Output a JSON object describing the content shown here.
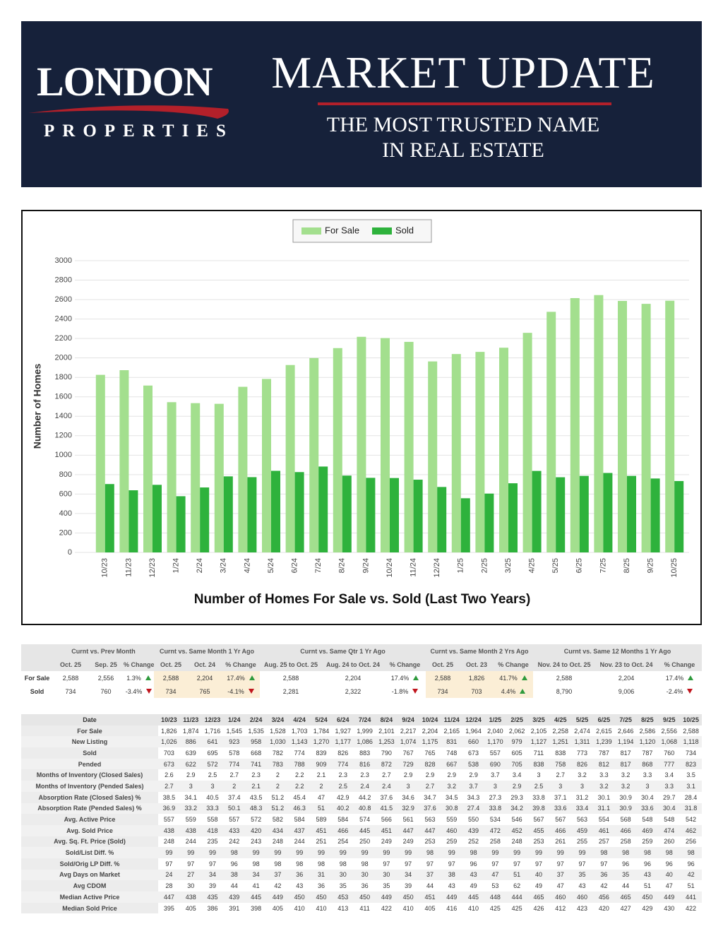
{
  "header": {
    "logo_title": "LONDON",
    "logo_subtitle": "PROPERTIES",
    "title": "MARKET UPDATE",
    "tagline": [
      "THE MOST TRUSTED NAME",
      "IN REAL ESTATE"
    ]
  },
  "chart_data": {
    "type": "bar",
    "title": "Number of Homes For Sale vs. Sold (Last Two Years)",
    "y_label": "Number of Homes",
    "categories": [
      "10/23",
      "11/23",
      "12/23",
      "1/24",
      "2/24",
      "3/24",
      "4/24",
      "5/24",
      "6/24",
      "7/24",
      "8/24",
      "9/24",
      "10/24",
      "11/24",
      "12/24",
      "1/25",
      "2/25",
      "3/25",
      "4/25",
      "5/25",
      "6/25",
      "7/25",
      "8/25",
      "9/25",
      "10/25"
    ],
    "series": [
      {
        "name": "For Sale",
        "color": "#a3df8e",
        "values": [
          1826,
          1874,
          1716,
          1545,
          1535,
          1528,
          1703,
          1784,
          1927,
          1999,
          2101,
          2217,
          2204,
          2165,
          1964,
          2040,
          2062,
          2105,
          2258,
          2474,
          2615,
          2646,
          2586,
          2556,
          2588
        ]
      },
      {
        "name": "Sold",
        "color": "#2eb23c",
        "values": [
          703,
          639,
          695,
          578,
          668,
          782,
          774,
          839,
          826,
          883,
          790,
          767,
          765,
          748,
          673,
          557,
          605,
          711,
          838,
          773,
          787,
          817,
          787,
          760,
          734
        ]
      }
    ],
    "ylim": [
      0,
      3000
    ],
    "yticks": [
      0,
      200,
      400,
      600,
      800,
      1000,
      1200,
      1400,
      1600,
      1800,
      2000,
      2200,
      2400,
      2600,
      2800,
      3000
    ],
    "grid": true,
    "legend": "top"
  },
  "summary": {
    "row_labels": [
      "For Sale",
      "Sold"
    ],
    "groups": [
      {
        "title": "Curnt vs. Prev Month",
        "columns": [
          "Oct. 25",
          "Sep. 25",
          "% Change"
        ],
        "rows": [
          [
            "2,588",
            "2,556",
            "1.3%"
          ],
          [
            "734",
            "760",
            "-3.4%"
          ]
        ]
      },
      {
        "title": "Curnt vs. Same Month 1 Yr Ago",
        "columns": [
          "Oct. 25",
          "Oct. 24",
          "% Change"
        ],
        "rows": [
          [
            "2,588",
            "2,204",
            "17.4%"
          ],
          [
            "734",
            "765",
            "-4.1%"
          ]
        ]
      },
      {
        "title": "Curnt vs. Same Qtr 1 Yr Ago",
        "columns": [
          "Aug. 25 to Oct. 25",
          "Aug. 24 to Oct. 24",
          "% Change"
        ],
        "rows": [
          [
            "2,588",
            "2,204",
            "17.4%"
          ],
          [
            "2,281",
            "2,322",
            "-1.8%"
          ]
        ]
      },
      {
        "title": "Curnt vs. Same Month 2 Yrs Ago",
        "columns": [
          "Oct. 25",
          "Oct. 23",
          "% Change"
        ],
        "rows": [
          [
            "2,588",
            "1,826",
            "41.7%"
          ],
          [
            "734",
            "703",
            "4.4%"
          ]
        ]
      },
      {
        "title": "Curnt vs. Same 12 Months 1 Yr Ago",
        "columns": [
          "Nov. 24 to Oct. 25",
          "Nov. 23 to Oct. 24",
          "% Change"
        ],
        "rows": [
          [
            "2,588",
            "2,204",
            "17.4%"
          ],
          [
            "8,790",
            "9,006",
            "-2.4%"
          ]
        ]
      }
    ]
  },
  "table": {
    "header": [
      "Date",
      "10/23",
      "11/23",
      "12/23",
      "1/24",
      "2/24",
      "3/24",
      "4/24",
      "5/24",
      "6/24",
      "7/24",
      "8/24",
      "9/24",
      "10/24",
      "11/24",
      "12/24",
      "1/25",
      "2/25",
      "3/25",
      "4/25",
      "5/25",
      "6/25",
      "7/25",
      "8/25",
      "9/25",
      "10/25"
    ],
    "rows": [
      [
        "For Sale",
        "1,826",
        "1,874",
        "1,716",
        "1,545",
        "1,535",
        "1,528",
        "1,703",
        "1,784",
        "1,927",
        "1,999",
        "2,101",
        "2,217",
        "2,204",
        "2,165",
        "1,964",
        "2,040",
        "2,062",
        "2,105",
        "2,258",
        "2,474",
        "2,615",
        "2,646",
        "2,586",
        "2,556",
        "2,588"
      ],
      [
        "New Listing",
        "1,026",
        "886",
        "641",
        "923",
        "958",
        "1,030",
        "1,143",
        "1,270",
        "1,177",
        "1,086",
        "1,253",
        "1,074",
        "1,175",
        "831",
        "660",
        "1,170",
        "979",
        "1,127",
        "1,251",
        "1,311",
        "1,239",
        "1,194",
        "1,120",
        "1,068",
        "1,118"
      ],
      [
        "Sold",
        "703",
        "639",
        "695",
        "578",
        "668",
        "782",
        "774",
        "839",
        "826",
        "883",
        "790",
        "767",
        "765",
        "748",
        "673",
        "557",
        "605",
        "711",
        "838",
        "773",
        "787",
        "817",
        "787",
        "760",
        "734"
      ],
      [
        "Pended",
        "673",
        "622",
        "572",
        "774",
        "741",
        "783",
        "788",
        "909",
        "774",
        "816",
        "872",
        "729",
        "828",
        "667",
        "538",
        "690",
        "705",
        "838",
        "758",
        "826",
        "812",
        "817",
        "868",
        "777",
        "823"
      ],
      [
        "Months of Inventory (Closed Sales)",
        "2.6",
        "2.9",
        "2.5",
        "2.7",
        "2.3",
        "2",
        "2.2",
        "2.1",
        "2.3",
        "2.3",
        "2.7",
        "2.9",
        "2.9",
        "2.9",
        "2.9",
        "3.7",
        "3.4",
        "3",
        "2.7",
        "3.2",
        "3.3",
        "3.2",
        "3.3",
        "3.4",
        "3.5"
      ],
      [
        "Months of Inventory (Pended Sales)",
        "2.7",
        "3",
        "3",
        "2",
        "2.1",
        "2",
        "2.2",
        "2",
        "2.5",
        "2.4",
        "2.4",
        "3",
        "2.7",
        "3.2",
        "3.7",
        "3",
        "2.9",
        "2.5",
        "3",
        "3",
        "3.2",
        "3.2",
        "3",
        "3.3",
        "3.1"
      ],
      [
        "Absorption Rate (Closed Sales) %",
        "38.5",
        "34.1",
        "40.5",
        "37.4",
        "43.5",
        "51.2",
        "45.4",
        "47",
        "42.9",
        "44.2",
        "37.6",
        "34.6",
        "34.7",
        "34.5",
        "34.3",
        "27.3",
        "29.3",
        "33.8",
        "37.1",
        "31.2",
        "30.1",
        "30.9",
        "30.4",
        "29.7",
        "28.4"
      ],
      [
        "Absorption Rate (Pended Sales) %",
        "36.9",
        "33.2",
        "33.3",
        "50.1",
        "48.3",
        "51.2",
        "46.3",
        "51",
        "40.2",
        "40.8",
        "41.5",
        "32.9",
        "37.6",
        "30.8",
        "27.4",
        "33.8",
        "34.2",
        "39.8",
        "33.6",
        "33.4",
        "31.1",
        "30.9",
        "33.6",
        "30.4",
        "31.8"
      ],
      [
        "Avg. Active Price",
        "557",
        "559",
        "558",
        "557",
        "572",
        "582",
        "584",
        "589",
        "584",
        "574",
        "566",
        "561",
        "563",
        "559",
        "550",
        "534",
        "546",
        "567",
        "567",
        "563",
        "554",
        "568",
        "548",
        "548",
        "542"
      ],
      [
        "Avg. Sold Price",
        "438",
        "438",
        "418",
        "433",
        "420",
        "434",
        "437",
        "451",
        "466",
        "445",
        "451",
        "447",
        "447",
        "460",
        "439",
        "472",
        "452",
        "455",
        "466",
        "459",
        "461",
        "466",
        "469",
        "474",
        "462"
      ],
      [
        "Avg. Sq. Ft. Price (Sold)",
        "248",
        "244",
        "235",
        "242",
        "243",
        "248",
        "244",
        "251",
        "254",
        "250",
        "249",
        "249",
        "253",
        "259",
        "252",
        "258",
        "248",
        "253",
        "261",
        "255",
        "257",
        "258",
        "259",
        "260",
        "256"
      ],
      [
        "Sold/List Diff. %",
        "99",
        "99",
        "99",
        "98",
        "99",
        "99",
        "99",
        "99",
        "99",
        "99",
        "99",
        "99",
        "98",
        "99",
        "98",
        "99",
        "99",
        "99",
        "99",
        "99",
        "98",
        "98",
        "98",
        "98",
        "98"
      ],
      [
        "Sold/Orig LP Diff. %",
        "97",
        "97",
        "97",
        "96",
        "98",
        "98",
        "98",
        "98",
        "98",
        "98",
        "97",
        "97",
        "97",
        "97",
        "96",
        "97",
        "97",
        "97",
        "97",
        "97",
        "97",
        "96",
        "96",
        "96",
        "96"
      ],
      [
        "Avg Days on Market",
        "24",
        "27",
        "34",
        "38",
        "34",
        "37",
        "36",
        "31",
        "30",
        "30",
        "30",
        "34",
        "37",
        "38",
        "43",
        "47",
        "51",
        "40",
        "37",
        "35",
        "36",
        "35",
        "43",
        "40",
        "42"
      ],
      [
        "Avg CDOM",
        "28",
        "30",
        "39",
        "44",
        "41",
        "42",
        "43",
        "36",
        "35",
        "36",
        "35",
        "39",
        "44",
        "43",
        "49",
        "53",
        "62",
        "49",
        "47",
        "43",
        "42",
        "44",
        "51",
        "47",
        "51"
      ],
      [
        "Median Active Price",
        "447",
        "438",
        "435",
        "439",
        "445",
        "449",
        "450",
        "450",
        "453",
        "450",
        "449",
        "450",
        "451",
        "449",
        "445",
        "448",
        "444",
        "465",
        "460",
        "460",
        "456",
        "465",
        "450",
        "449",
        "441"
      ],
      [
        "Median Sold Price",
        "395",
        "405",
        "386",
        "391",
        "398",
        "405",
        "410",
        "410",
        "413",
        "411",
        "422",
        "410",
        "405",
        "416",
        "410",
        "425",
        "425",
        "426",
        "412",
        "423",
        "420",
        "427",
        "429",
        "430",
        "422"
      ]
    ]
  }
}
